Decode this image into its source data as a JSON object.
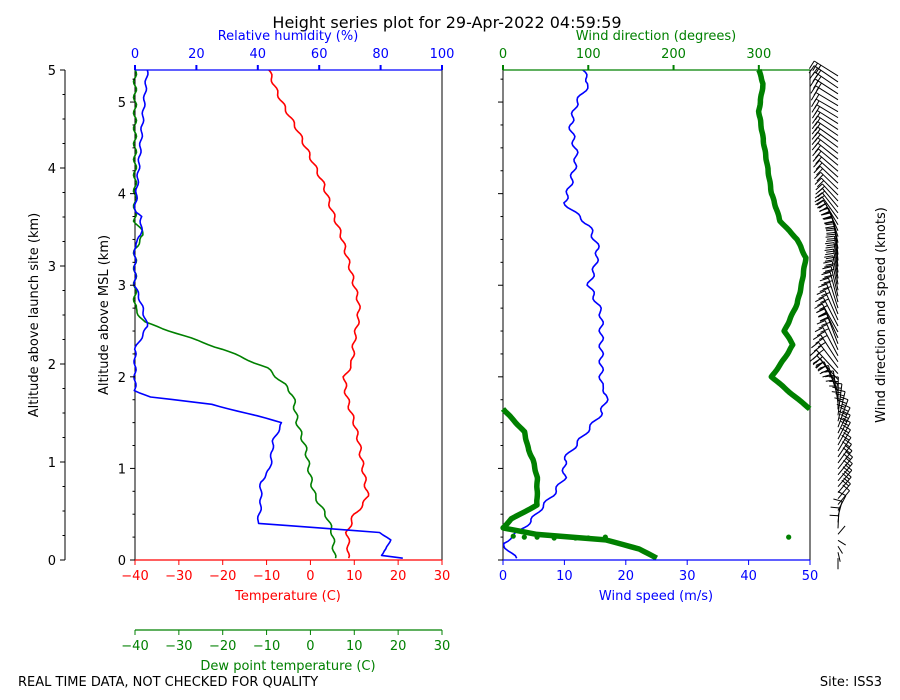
{
  "title": "Height series plot for 29-Apr-2022 04:59:59",
  "footer_left": "REAL TIME DATA, NOT CHECKED FOR QUALITY",
  "footer_right": "Site: ISS3",
  "colors": {
    "temperature": "#ff0000",
    "dewpoint": "#008000",
    "rh": "#0000ff",
    "wind_speed": "#0000ff",
    "wind_dir": "#008000",
    "text": "#000000"
  },
  "chart_data": [
    {
      "type": "line",
      "name": "thermo-panel",
      "ylabel_outer": "Altitude above launch site (km)",
      "ylabel_inner": "Altitude above MSL (km)",
      "xlabel_temperature": "Temperature (C)",
      "xlabel_rh": "Relative humidity (%)",
      "xlabel_dewpoint": "Dew point temperature (C)",
      "xlim_temperature": [
        -40,
        30
      ],
      "xlim_rh": [
        0,
        100
      ],
      "ylim_msl_km": [
        0,
        5.35
      ],
      "ylim_agl_km": [
        0,
        5
      ],
      "ticks_temperature": [
        "-40",
        "-30",
        "-20",
        "-10",
        "0",
        "10",
        "20",
        "30"
      ],
      "ticks_rh": [
        "0",
        "20",
        "40",
        "60",
        "80",
        "100"
      ],
      "ticks_msl": [
        "0",
        "1",
        "2",
        "3",
        "4",
        "5"
      ],
      "ticks_agl": [
        "0",
        "1",
        "2",
        "3",
        "4",
        "5"
      ],
      "series": [
        {
          "name": "Temperature",
          "unit": "C",
          "color": "#ff0000",
          "points": [
            [
              8.5,
              0.02
            ],
            [
              8.7,
              0.15
            ],
            [
              8.4,
              0.3
            ],
            [
              10,
              0.5
            ],
            [
              12,
              0.6
            ],
            [
              13,
              0.7
            ],
            [
              12,
              1.0
            ],
            [
              11,
              1.3
            ],
            [
              10,
              1.5
            ],
            [
              9,
              1.65
            ],
            [
              8,
              1.85
            ],
            [
              7.8,
              2.0
            ],
            [
              9.5,
              2.15
            ],
            [
              10,
              2.4
            ],
            [
              11,
              2.65
            ],
            [
              11,
              2.82
            ],
            [
              10,
              3.0
            ],
            [
              9,
              3.2
            ],
            [
              7,
              3.55
            ],
            [
              5,
              3.8
            ],
            [
              3,
              4.1
            ],
            [
              2,
              4.2
            ],
            [
              0,
              4.4
            ],
            [
              -3,
              4.7
            ],
            [
              -6,
              4.95
            ],
            [
              -8,
              5.15
            ],
            [
              -9.5,
              5.35
            ]
          ]
        },
        {
          "name": "Dew point",
          "unit": "C",
          "color": "#008000",
          "points": [
            [
              5.5,
              0.02
            ],
            [
              5.3,
              0.15
            ],
            [
              5.0,
              0.3
            ],
            [
              4.0,
              0.45
            ],
            [
              1.0,
              0.7
            ],
            [
              0.0,
              0.9
            ],
            [
              -1.0,
              1.2
            ],
            [
              -3.0,
              1.5
            ],
            [
              -4.0,
              1.8
            ],
            [
              -6.0,
              1.92
            ],
            [
              -10,
              2.1
            ],
            [
              -20,
              2.3
            ],
            [
              -38,
              2.6
            ],
            [
              -40,
              2.75
            ],
            [
              -40,
              3.4
            ],
            [
              -38,
              3.55
            ],
            [
              -40,
              3.7
            ],
            [
              -40,
              5.35
            ]
          ]
        },
        {
          "name": "Relative humidity",
          "unit": "%",
          "color": "#0000ff",
          "points": [
            [
              87,
              0.02
            ],
            [
              80,
              0.05
            ],
            [
              82,
              0.12
            ],
            [
              83,
              0.22
            ],
            [
              80,
              0.3
            ],
            [
              60,
              0.35
            ],
            [
              40,
              0.4
            ],
            [
              41,
              0.6
            ],
            [
              41,
              0.85
            ],
            [
              44,
              1.0
            ],
            [
              45,
              1.3
            ],
            [
              48,
              1.5
            ],
            [
              25,
              1.7
            ],
            [
              5,
              1.78
            ],
            [
              0,
              1.85
            ],
            [
              0,
              2.3
            ],
            [
              4,
              2.55
            ],
            [
              2,
              2.8
            ],
            [
              0,
              3.0
            ],
            [
              0,
              3.45
            ],
            [
              2,
              3.55
            ],
            [
              2,
              3.75
            ],
            [
              0,
              3.8
            ],
            [
              1,
              4.2
            ],
            [
              2,
              4.6
            ],
            [
              3,
              5.0
            ],
            [
              4,
              5.35
            ]
          ]
        }
      ]
    },
    {
      "type": "line",
      "name": "wind-panel",
      "xlabel_speed": "Wind speed (m/s)",
      "xlabel_direction": "Wind direction (degrees)",
      "xlim_speed": [
        0,
        50
      ],
      "xlim_direction": [
        0,
        360
      ],
      "ylim_msl_km": [
        0,
        5.35
      ],
      "ticks_speed": [
        "0",
        "10",
        "20",
        "30",
        "40",
        "50"
      ],
      "ticks_direction": [
        "0",
        "100",
        "200",
        "300"
      ],
      "series": [
        {
          "name": "Wind speed",
          "unit": "m/s",
          "color": "#0000ff",
          "points": [
            [
              2,
              0.02
            ],
            [
              0,
              0.18
            ],
            [
              2,
              0.28
            ],
            [
              4.5,
              0.42
            ],
            [
              6,
              0.55
            ],
            [
              8,
              0.7
            ],
            [
              10,
              0.9
            ],
            [
              10,
              1.1
            ],
            [
              13,
              1.35
            ],
            [
              16,
              1.6
            ],
            [
              17,
              1.8
            ],
            [
              16,
              1.9
            ],
            [
              16,
              2.1
            ],
            [
              16,
              2.4
            ],
            [
              16,
              2.7
            ],
            [
              14,
              3.0
            ],
            [
              15,
              3.2
            ],
            [
              15.5,
              3.4
            ],
            [
              14,
              3.65
            ],
            [
              10,
              3.9
            ],
            [
              11,
              4.1
            ],
            [
              12,
              4.4
            ],
            [
              11,
              4.75
            ],
            [
              12,
              5.0
            ],
            [
              14,
              5.2
            ],
            [
              13,
              5.35
            ]
          ]
        },
        {
          "name": "Wind direction",
          "unit": "degrees",
          "color": "#008000",
          "points": [
            [
              180,
              0.02
            ],
            [
              160,
              0.12
            ],
            [
              120,
              0.22
            ],
            [
              40,
              0.28
            ],
            [
              0,
              0.35
            ],
            [
              10,
              0.45
            ],
            [
              40,
              0.6
            ],
            [
              40,
              0.9
            ],
            [
              35,
              1.1
            ],
            [
              30,
              1.2
            ],
            [
              25,
              1.4
            ],
            [
              10,
              1.55
            ],
            [
              0,
              1.65
            ],
            [
              360,
              1.65
            ],
            [
              340,
              1.8
            ],
            [
              315,
              2.0
            ],
            [
              330,
              2.2
            ],
            [
              340,
              2.35
            ],
            [
              330,
              2.5
            ],
            [
              345,
              2.8
            ],
            [
              350,
              3.0
            ],
            [
              355,
              3.3
            ],
            [
              345,
              3.5
            ],
            [
              325,
              3.7
            ],
            [
              315,
              4.0
            ],
            [
              310,
              4.3
            ],
            [
              305,
              4.6
            ],
            [
              300,
              4.9
            ],
            [
              305,
              5.2
            ],
            [
              300,
              5.35
            ]
          ]
        },
        {
          "name": "Wind barbs",
          "unit": "knots",
          "color": "#000000",
          "label": "Wind direction and speed (knots)"
        }
      ]
    }
  ]
}
